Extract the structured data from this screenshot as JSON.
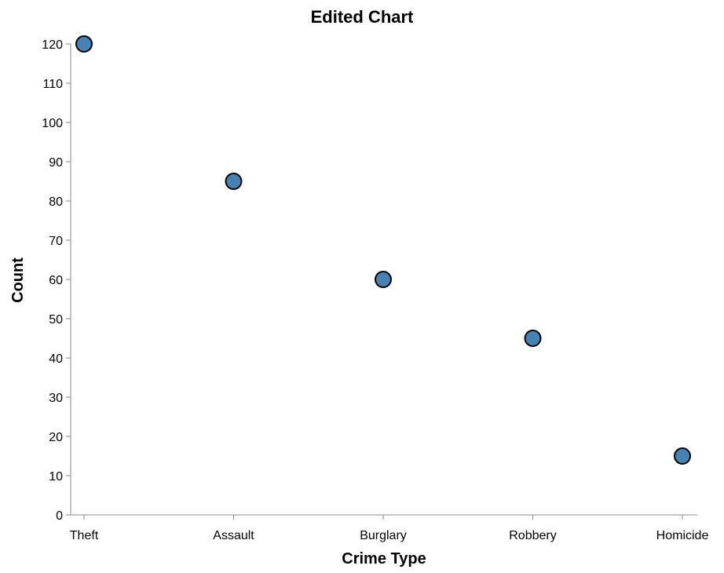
{
  "chart_data": {
    "type": "scatter",
    "title": "Edited Chart",
    "xlabel": "Crime Type",
    "ylabel": "Count",
    "categories": [
      "Theft",
      "Assault",
      "Burglary",
      "Robbery",
      "Homicide"
    ],
    "values": [
      120,
      85,
      60,
      45,
      15
    ],
    "ylim": [
      0,
      120
    ],
    "yticks": [
      0,
      10,
      20,
      30,
      40,
      50,
      60,
      70,
      80,
      90,
      100,
      110,
      120
    ],
    "grid": false,
    "legend": "none",
    "colors": {
      "point_fill": "#4682b4",
      "point_stroke": "#000000",
      "axis": "#888888"
    }
  }
}
